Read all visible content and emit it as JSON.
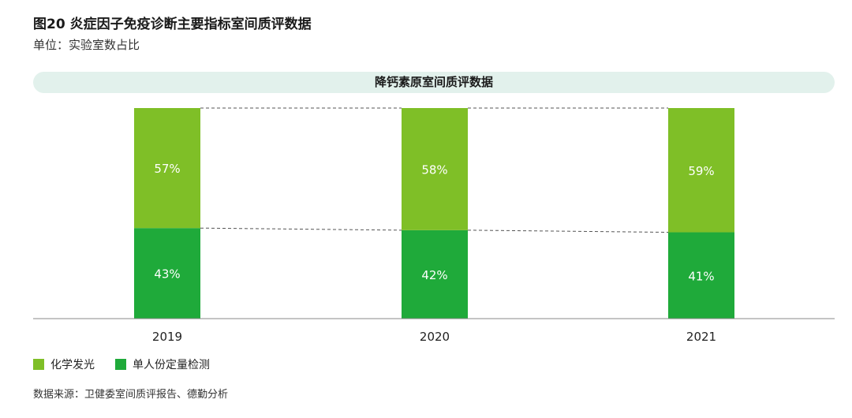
{
  "title": "图20 炎症因子免疫诊断主要指标室间质评数据",
  "subtitle": "单位：实验室数占比",
  "banner": "降钙素原室间质评数据",
  "colors": {
    "chemiluminescence": "#7fbf27",
    "single_quant": "#1faa3a"
  },
  "legend": {
    "item1": "化学发光",
    "item2": "单人份定量检测"
  },
  "source": "数据来源：卫健委室间质评报告、德勤分析",
  "chart_data": {
    "type": "bar",
    "stacked": true,
    "categories": [
      "2019",
      "2020",
      "2021"
    ],
    "series": [
      {
        "name": "单人份定量检测",
        "values": [
          43,
          42,
          41
        ],
        "labels": [
          "43%",
          "42%",
          "41%"
        ]
      },
      {
        "name": "化学发光",
        "values": [
          57,
          58,
          59
        ],
        "labels": [
          "57%",
          "58%",
          "59%"
        ]
      }
    ],
    "ylim": [
      0,
      100
    ],
    "legend_position": "bottom-left",
    "grid": false
  }
}
